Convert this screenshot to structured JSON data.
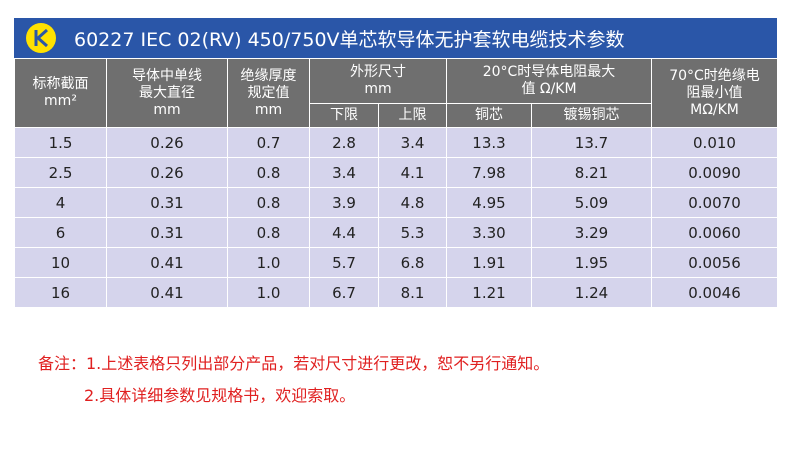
{
  "title": "60227 IEC 02(RV) 450/750V单芯软导体无护套软电缆技术参数",
  "colors": {
    "title_bg": "#2a56a8",
    "header_bg": "#6f6f6f",
    "row_bg": "#d5d4ec",
    "note": "#e02020",
    "logo": "#ffe100"
  },
  "headers": {
    "section": {
      "line1": "标称截面",
      "line2": "mm²"
    },
    "diameter": {
      "line1": "导体中单线",
      "line2": "最大直径",
      "line3": "mm"
    },
    "insulation": {
      "line1": "绝缘厚度",
      "line2": "规定值",
      "line3": "mm"
    },
    "outer": {
      "line1": "外形尺寸",
      "line2": "mm",
      "lower": "下限",
      "upper": "上限"
    },
    "resistance": {
      "line1": "20°C时导体电阻最大",
      "line2": "值 Ω/KM",
      "copper": "铜芯",
      "tinned": "镀锡铜芯"
    },
    "insres": {
      "line1": "70°C时绝缘电",
      "line2": "阻最小值",
      "line3": "MΩ/KM"
    }
  },
  "rows": [
    [
      "1.5",
      "0.26",
      "0.7",
      "2.8",
      "3.4",
      "13.3",
      "13.7",
      "0.010"
    ],
    [
      "2.5",
      "0.26",
      "0.8",
      "3.4",
      "4.1",
      "7.98",
      "8.21",
      "0.0090"
    ],
    [
      "4",
      "0.31",
      "0.8",
      "3.9",
      "4.8",
      "4.95",
      "5.09",
      "0.0070"
    ],
    [
      "6",
      "0.31",
      "0.8",
      "4.4",
      "5.3",
      "3.30",
      "3.29",
      "0.0060"
    ],
    [
      "10",
      "0.41",
      "1.0",
      "5.7",
      "6.8",
      "1.91",
      "1.95",
      "0.0056"
    ],
    [
      "16",
      "0.41",
      "1.0",
      "6.7",
      "8.1",
      "1.21",
      "1.24",
      "0.0046"
    ]
  ],
  "notes": {
    "line1": "备注：1.上述表格只列出部分产品，若对尺寸进行更改，恕不另行通知。",
    "line2": "2.具体详细参数见规格书，欢迎索取。"
  }
}
